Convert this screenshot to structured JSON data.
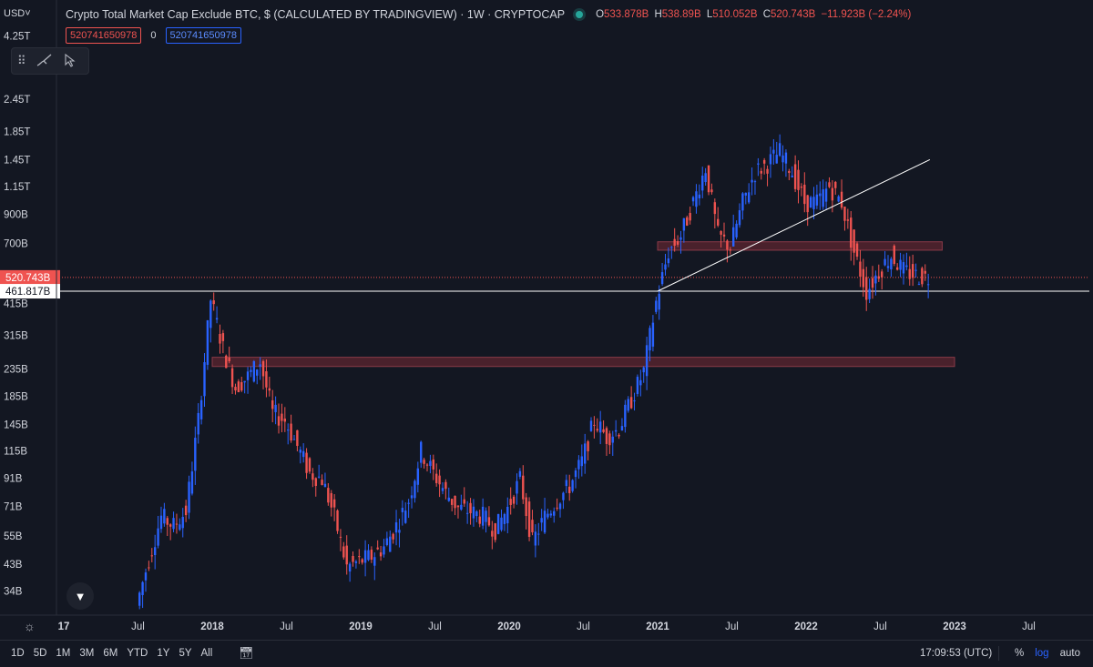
{
  "header": {
    "currency": "USD",
    "title": "Crypto Total Market Cap Exclude BTC, $ (CALCULATED BY TRADINGVIEW) · 1W · CRYPTOCAP",
    "ohlc": {
      "o_label": "O",
      "o": "533.878B",
      "h_label": "H",
      "h": "538.89B",
      "l_label": "L",
      "l": "510.052B",
      "c_label": "C",
      "c": "520.743B",
      "change": "−11.923B (−2.24%)"
    }
  },
  "indicator": {
    "red_value": "520741650978",
    "zero": "0",
    "blue_value": "520741650978"
  },
  "toolbar": {
    "brush_icon": "brush-icon",
    "cursor_icon": "cursor-arrow-icon"
  },
  "colors": {
    "bg": "#131722",
    "up": "#2962ff",
    "down": "#ef5350",
    "zone": "#5d2530",
    "price_line": "#ef5350",
    "h_line": "#ffffff"
  },
  "chart_data": {
    "type": "candlestick",
    "scale": "log",
    "y_ticks": [
      "4.25T",
      "2.45T",
      "1.85T",
      "1.45T",
      "1.15T",
      "900B",
      "700B",
      "415B",
      "315B",
      "235B",
      "185B",
      "145B",
      "115B",
      "91B",
      "71B",
      "55B",
      "43B",
      "34B"
    ],
    "y_tick_values": [
      4250000000000.0,
      2450000000000.0,
      1850000000000.0,
      1450000000000.0,
      1150000000000.0,
      900000000000.0,
      700000000000.0,
      415000000000.0,
      315000000000.0,
      235000000000.0,
      185000000000.0,
      145000000000.0,
      115000000000.0,
      91000000000.0,
      71000000000.0,
      55000000000.0,
      43000000000.0,
      34000000000.0
    ],
    "x_ticks": [
      "17",
      "Jul",
      "2018",
      "Jul",
      "2019",
      "Jul",
      "2020",
      "Jul",
      "2021",
      "Jul",
      "2022",
      "Jul",
      "2023",
      "Jul"
    ],
    "x_tick_dates": [
      "2017-01",
      "2017-07",
      "2018-01",
      "2018-07",
      "2019-01",
      "2019-07",
      "2020-01",
      "2020-07",
      "2021-01",
      "2021-07",
      "2022-01",
      "2022-07",
      "2023-01",
      "2023-07"
    ],
    "price_label": "520.743B",
    "price_value": 520743000000.0,
    "hline_label": "461.817B",
    "hline_value": 461817000000.0,
    "zones": [
      {
        "from": "2021-01",
        "to": "2022-12",
        "low": 660000000000.0,
        "high": 710000000000.0
      },
      {
        "from": "2018-01",
        "to": "2023-01",
        "low": 240000000000.0,
        "high": 260000000000.0
      }
    ],
    "trendline": {
      "from_date": "2021-01",
      "from_value": 462000000000.0,
      "to_date": "2022-11",
      "to_value": 1450000000000.0
    },
    "series": [
      {
        "date": "2017-07",
        "value": 30000000000.0
      },
      {
        "date": "2017-08",
        "value": 45000000000.0
      },
      {
        "date": "2017-09",
        "value": 65000000000.0
      },
      {
        "date": "2017-10",
        "value": 60000000000.0
      },
      {
        "date": "2017-11",
        "value": 68000000000.0
      },
      {
        "date": "2017-12",
        "value": 150000000000.0
      },
      {
        "date": "2018-01",
        "value": 430000000000.0
      },
      {
        "date": "2018-02",
        "value": 280000000000.0
      },
      {
        "date": "2018-03",
        "value": 200000000000.0
      },
      {
        "date": "2018-04",
        "value": 220000000000.0
      },
      {
        "date": "2018-05",
        "value": 250000000000.0
      },
      {
        "date": "2018-06",
        "value": 160000000000.0
      },
      {
        "date": "2018-07",
        "value": 150000000000.0
      },
      {
        "date": "2018-08",
        "value": 120000000000.0
      },
      {
        "date": "2018-09",
        "value": 95000000000.0
      },
      {
        "date": "2018-10",
        "value": 90000000000.0
      },
      {
        "date": "2018-11",
        "value": 65000000000.0
      },
      {
        "date": "2018-12",
        "value": 42000000000.0
      },
      {
        "date": "2019-01",
        "value": 44000000000.0
      },
      {
        "date": "2019-02",
        "value": 46000000000.0
      },
      {
        "date": "2019-03",
        "value": 50000000000.0
      },
      {
        "date": "2019-04",
        "value": 60000000000.0
      },
      {
        "date": "2019-05",
        "value": 75000000000.0
      },
      {
        "date": "2019-06",
        "value": 115000000000.0
      },
      {
        "date": "2019-07",
        "value": 95000000000.0
      },
      {
        "date": "2019-08",
        "value": 80000000000.0
      },
      {
        "date": "2019-09",
        "value": 70000000000.0
      },
      {
        "date": "2019-10",
        "value": 68000000000.0
      },
      {
        "date": "2019-11",
        "value": 65000000000.0
      },
      {
        "date": "2019-12",
        "value": 58000000000.0
      },
      {
        "date": "2020-01",
        "value": 70000000000.0
      },
      {
        "date": "2020-02",
        "value": 90000000000.0
      },
      {
        "date": "2020-03",
        "value": 52000000000.0
      },
      {
        "date": "2020-04",
        "value": 65000000000.0
      },
      {
        "date": "2020-05",
        "value": 75000000000.0
      },
      {
        "date": "2020-06",
        "value": 85000000000.0
      },
      {
        "date": "2020-07",
        "value": 105000000000.0
      },
      {
        "date": "2020-08",
        "value": 150000000000.0
      },
      {
        "date": "2020-09",
        "value": 130000000000.0
      },
      {
        "date": "2020-10",
        "value": 140000000000.0
      },
      {
        "date": "2020-11",
        "value": 180000000000.0
      },
      {
        "date": "2020-12",
        "value": 230000000000.0
      },
      {
        "date": "2021-01",
        "value": 420000000000.0
      },
      {
        "date": "2021-02",
        "value": 650000000000.0
      },
      {
        "date": "2021-03",
        "value": 750000000000.0
      },
      {
        "date": "2021-04",
        "value": 1000000000000.0
      },
      {
        "date": "2021-05",
        "value": 1350000000000.0
      },
      {
        "date": "2021-06",
        "value": 750000000000.0
      },
      {
        "date": "2021-07",
        "value": 680000000000.0
      },
      {
        "date": "2021-08",
        "value": 1000000000000.0
      },
      {
        "date": "2021-09",
        "value": 1300000000000.0
      },
      {
        "date": "2021-10",
        "value": 1400000000000.0
      },
      {
        "date": "2021-11",
        "value": 1550000000000.0
      },
      {
        "date": "2021-12",
        "value": 1300000000000.0
      },
      {
        "date": "2022-01",
        "value": 1000000000000.0
      },
      {
        "date": "2022-02",
        "value": 1000000000000.0
      },
      {
        "date": "2022-03",
        "value": 1150000000000.0
      },
      {
        "date": "2022-04",
        "value": 1000000000000.0
      },
      {
        "date": "2022-05",
        "value": 650000000000.0
      },
      {
        "date": "2022-06",
        "value": 460000000000.0
      },
      {
        "date": "2022-07",
        "value": 550000000000.0
      },
      {
        "date": "2022-08",
        "value": 630000000000.0
      },
      {
        "date": "2022-09",
        "value": 550000000000.0
      },
      {
        "date": "2022-10",
        "value": 530000000000.0
      },
      {
        "date": "2022-11",
        "value": 520000000000.0
      }
    ]
  },
  "bottom": {
    "ranges": [
      "1D",
      "5D",
      "1M",
      "3M",
      "6M",
      "YTD",
      "1Y",
      "5Y",
      "All"
    ],
    "time": "17:09:53 (UTC)",
    "pct": "%",
    "log": "log",
    "auto": "auto"
  }
}
